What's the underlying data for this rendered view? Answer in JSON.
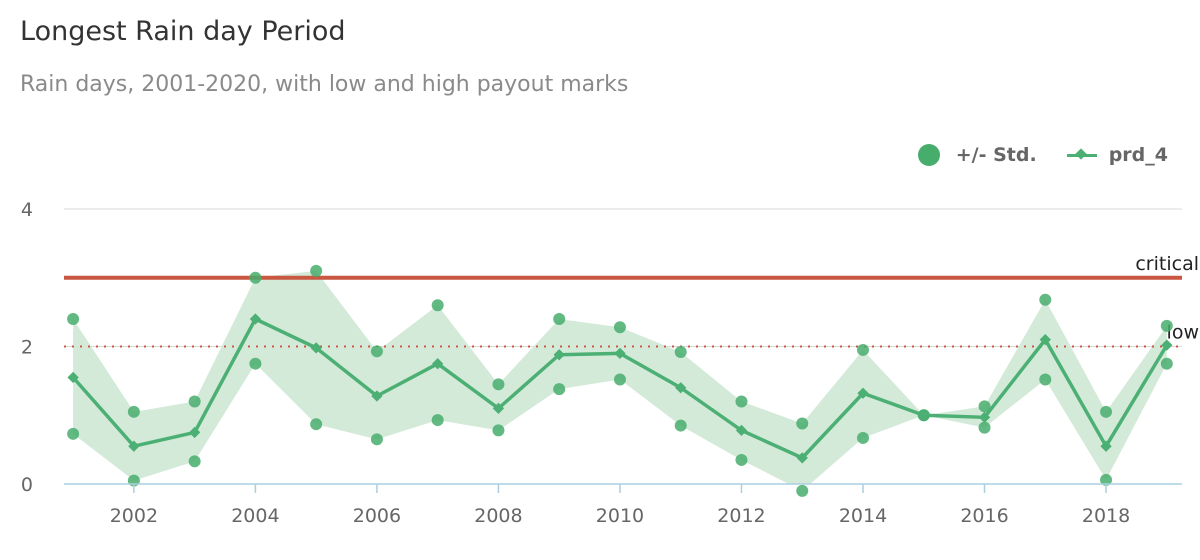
{
  "chart_data": {
    "type": "line",
    "title": "Longest Rain day Period",
    "subtitle": "Rain days, 2001-2020, with low and high payout marks",
    "xlabel": "",
    "ylabel": "",
    "x": [
      2001,
      2002,
      2003,
      2004,
      2005,
      2006,
      2007,
      2008,
      2009,
      2010,
      2011,
      2012,
      2013,
      2014,
      2015,
      2016,
      2017,
      2018,
      2019
    ],
    "xlim": [
      2000.85,
      2019.25
    ],
    "ylim": [
      0,
      4
    ],
    "x_ticks": [
      "2002",
      "2004",
      "2006",
      "2008",
      "2010",
      "2012",
      "2014",
      "2016",
      "2018"
    ],
    "y_ticks": [
      "0",
      "2",
      "4"
    ],
    "series": [
      {
        "name": "prd_4",
        "color": "#4caf73",
        "values": [
          1.55,
          0.55,
          0.75,
          2.4,
          1.98,
          1.28,
          1.75,
          1.1,
          1.88,
          1.9,
          1.4,
          0.78,
          0.38,
          1.32,
          1.0,
          0.97,
          2.1,
          0.55,
          2.02
        ]
      },
      {
        "name": "+/- Std.",
        "color": "#46ad6c",
        "band_color": "#d3ead9",
        "upper": [
          2.4,
          1.05,
          1.2,
          3.0,
          3.1,
          1.93,
          2.6,
          1.45,
          2.4,
          2.28,
          1.92,
          1.2,
          0.88,
          1.95,
          1.0,
          1.13,
          2.68,
          1.05,
          2.3
        ],
        "lower": [
          0.73,
          0.05,
          0.33,
          1.75,
          0.87,
          0.65,
          0.93,
          0.78,
          1.38,
          1.52,
          0.85,
          0.35,
          -0.1,
          0.67,
          1.0,
          0.82,
          1.52,
          0.06,
          1.75
        ]
      }
    ],
    "reference_lines": [
      {
        "label": "critical",
        "value": 3,
        "color": "#c95741",
        "style": "solid"
      },
      {
        "label": "low",
        "value": 2,
        "color": "#c95741",
        "style": "dotted"
      }
    ],
    "legend_position": "top-right",
    "grid": true
  }
}
